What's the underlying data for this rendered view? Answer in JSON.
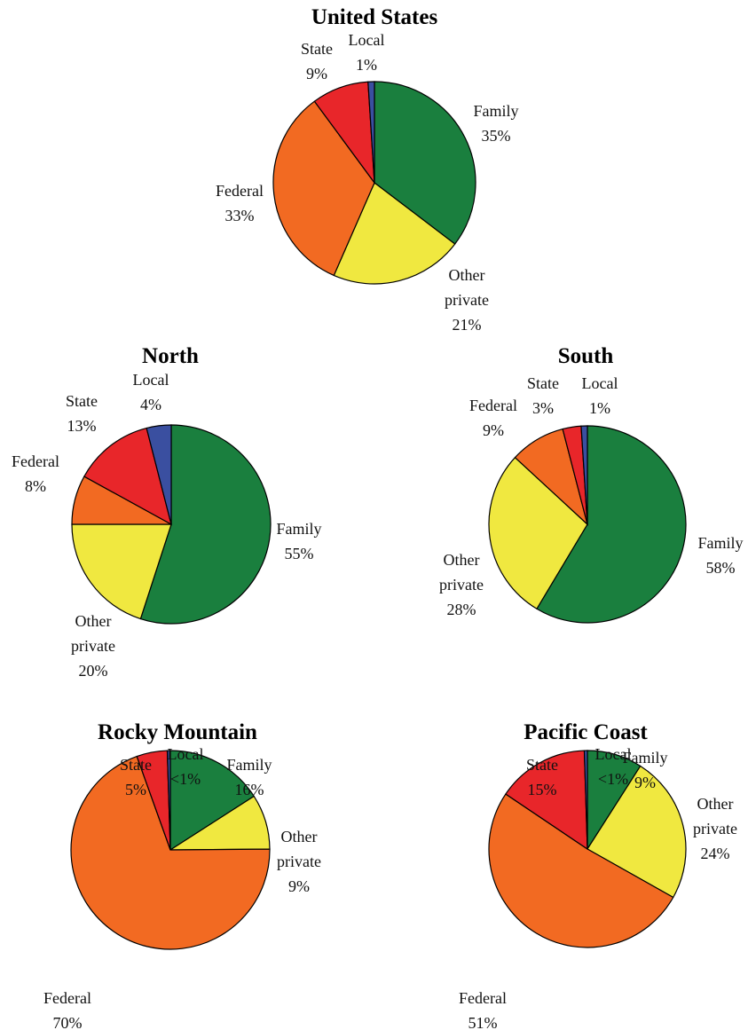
{
  "chart_data": [
    {
      "type": "pie",
      "title": "United States",
      "categories": [
        "Family",
        "Other private",
        "Federal",
        "State",
        "Local"
      ],
      "values": [
        35,
        21,
        33,
        9,
        1
      ],
      "value_labels": [
        "35%",
        "21%",
        "33%",
        "9%",
        "1%"
      ],
      "colors": [
        "#1a7f3e",
        "#f0e840",
        "#f26a22",
        "#e8262a",
        "#3a4fa0"
      ]
    },
    {
      "type": "pie",
      "title": "North",
      "categories": [
        "Family",
        "Other private",
        "Federal",
        "State",
        "Local"
      ],
      "values": [
        55,
        20,
        8,
        13,
        4
      ],
      "value_labels": [
        "55%",
        "20%",
        "8%",
        "13%",
        "4%"
      ],
      "colors": [
        "#1a7f3e",
        "#f0e840",
        "#f26a22",
        "#e8262a",
        "#3a4fa0"
      ]
    },
    {
      "type": "pie",
      "title": "South",
      "categories": [
        "Family",
        "Other private",
        "Federal",
        "State",
        "Local"
      ],
      "values": [
        58,
        28,
        9,
        3,
        1
      ],
      "value_labels": [
        "58%",
        "28%",
        "9%",
        "3%",
        "1%"
      ],
      "colors": [
        "#1a7f3e",
        "#f0e840",
        "#f26a22",
        "#e8262a",
        "#3a4fa0"
      ]
    },
    {
      "type": "pie",
      "title": "Rocky Mountain",
      "categories": [
        "Family",
        "Other private",
        "Federal",
        "State",
        "Local"
      ],
      "values": [
        16,
        9,
        70,
        5,
        0.5
      ],
      "value_labels": [
        "16%",
        "9%",
        "70%",
        "5%",
        "<1%"
      ],
      "colors": [
        "#1a7f3e",
        "#f0e840",
        "#f26a22",
        "#e8262a",
        "#3a4fa0"
      ]
    },
    {
      "type": "pie",
      "title": "Pacific Coast",
      "categories": [
        "Family",
        "Other private",
        "Federal",
        "State",
        "Local"
      ],
      "values": [
        9,
        24,
        51,
        15,
        0.5
      ],
      "value_labels": [
        "9%",
        "24%",
        "51%",
        "15%",
        "<1%"
      ],
      "colors": [
        "#1a7f3e",
        "#f0e840",
        "#f26a22",
        "#e8262a",
        "#3a4fa0"
      ]
    }
  ]
}
